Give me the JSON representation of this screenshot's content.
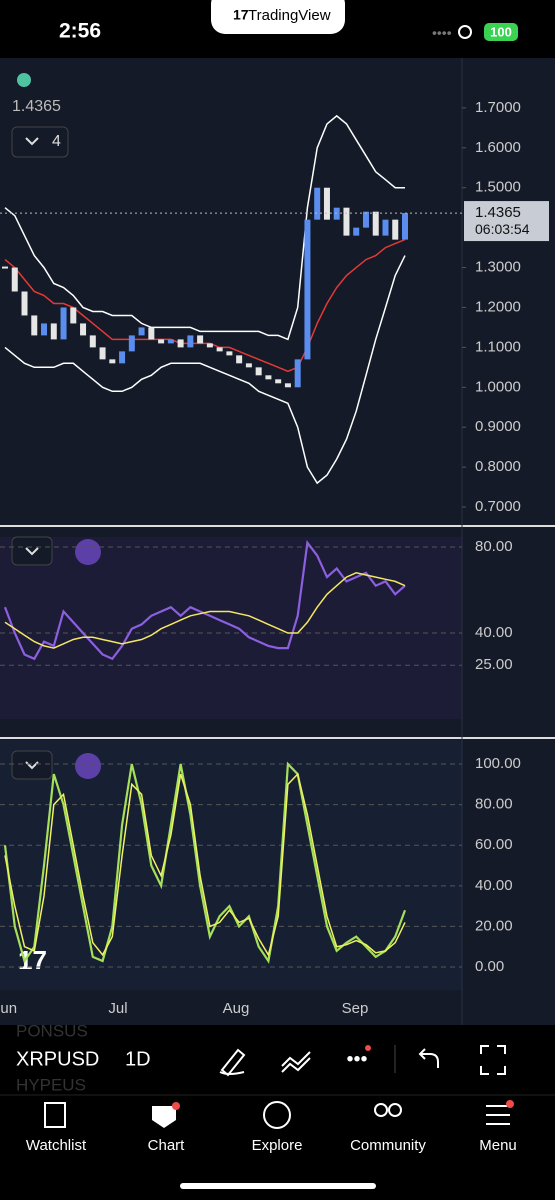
{
  "status_bar": {
    "time": "2:56",
    "brand": "TradingView",
    "battery": "100"
  },
  "chart_header": {
    "price": "1.4365",
    "interval_count": "4"
  },
  "x_labels": [
    "Jun",
    "Jul",
    "Aug",
    "Sep"
  ],
  "chart_data": [
    {
      "type": "candlestick",
      "ylim": [
        0.655,
        1.82
      ],
      "yticks": [
        {
          "value": 1.7,
          "label": "1.7000"
        },
        {
          "value": 1.6,
          "label": "1.6000"
        },
        {
          "value": 1.5,
          "label": "1.5000"
        },
        {
          "value": 1.3,
          "label": "1.3000"
        },
        {
          "value": 1.2,
          "label": "1.2000"
        },
        {
          "value": 1.1,
          "label": "1.1000"
        },
        {
          "value": 1.0,
          "label": "1.0000"
        },
        {
          "value": 0.9,
          "label": "0.9000"
        },
        {
          "value": 0.8,
          "label": "0.8000"
        },
        {
          "value": 0.7,
          "label": "0.7000"
        }
      ],
      "last_price": {
        "value": 1.4365,
        "label": "1.4365",
        "countdown": "06:03:54"
      },
      "up_color": "#5b8def",
      "down_color": "#e6e6e6",
      "values": [
        1.3,
        1.24,
        1.18,
        1.13,
        1.16,
        1.12,
        1.2,
        1.16,
        1.13,
        1.1,
        1.07,
        1.06,
        1.09,
        1.13,
        1.15,
        1.12,
        1.11,
        1.12,
        1.1,
        1.13,
        1.11,
        1.1,
        1.09,
        1.08,
        1.06,
        1.05,
        1.03,
        1.02,
        1.01,
        1.0,
        1.07,
        1.42,
        1.5,
        1.42,
        1.45,
        1.38,
        1.4,
        1.44,
        1.38,
        1.42,
        1.37,
        1.4365
      ],
      "series": [
        {
          "color": "#ffffff",
          "values": [
            1.45,
            1.43,
            1.38,
            1.33,
            1.3,
            1.26,
            1.25,
            1.23,
            1.2,
            1.19,
            1.19,
            1.18,
            1.18,
            1.18,
            1.16,
            1.15,
            1.15,
            1.15,
            1.15,
            1.15,
            1.14,
            1.14,
            1.14,
            1.14,
            1.14,
            1.14,
            1.14,
            1.13,
            1.13,
            1.12,
            1.2,
            1.45,
            1.6,
            1.66,
            1.68,
            1.66,
            1.62,
            1.58,
            1.54,
            1.52,
            1.5,
            1.5
          ]
        },
        {
          "color": "#ffffff",
          "values": [
            1.1,
            1.08,
            1.06,
            1.05,
            1.05,
            1.05,
            1.06,
            1.06,
            1.04,
            1.02,
            1.0,
            0.99,
            0.99,
            1.0,
            1.02,
            1.03,
            1.05,
            1.06,
            1.06,
            1.06,
            1.06,
            1.05,
            1.04,
            1.03,
            1.02,
            1.01,
            0.99,
            0.98,
            0.97,
            0.96,
            0.9,
            0.8,
            0.76,
            0.78,
            0.82,
            0.87,
            0.94,
            1.03,
            1.12,
            1.2,
            1.28,
            1.33
          ]
        },
        {
          "color": "#e53935",
          "values": [
            1.32,
            1.3,
            1.27,
            1.24,
            1.23,
            1.21,
            1.21,
            1.2,
            1.18,
            1.16,
            1.14,
            1.12,
            1.12,
            1.12,
            1.12,
            1.12,
            1.12,
            1.12,
            1.11,
            1.11,
            1.11,
            1.11,
            1.1,
            1.1,
            1.09,
            1.08,
            1.07,
            1.06,
            1.05,
            1.04,
            1.05,
            1.1,
            1.16,
            1.21,
            1.25,
            1.28,
            1.3,
            1.32,
            1.33,
            1.35,
            1.36,
            1.37
          ]
        }
      ]
    },
    {
      "type": "line",
      "ylim": [
        -5.1,
        84.65
      ],
      "yticks": [
        {
          "value": 80,
          "label": "80.00"
        },
        {
          "value": 40,
          "label": "40.00"
        },
        {
          "value": 25,
          "label": "25.00"
        }
      ],
      "series": [
        {
          "color": "#8c5fe0",
          "values": [
            52,
            40,
            30,
            28,
            36,
            34,
            50,
            45,
            40,
            35,
            30,
            28,
            34,
            42,
            44,
            48,
            50,
            52,
            48,
            52,
            50,
            48,
            46,
            44,
            42,
            38,
            36,
            34,
            33,
            33,
            48,
            82,
            76,
            66,
            70,
            64,
            66,
            68,
            62,
            64,
            58,
            62
          ]
        },
        {
          "color": "#f5e663",
          "values": [
            45,
            42,
            39,
            36,
            34,
            33,
            35,
            37,
            38,
            38,
            37,
            36,
            35,
            36,
            37,
            39,
            42,
            44,
            46,
            48,
            49,
            50,
            50,
            50,
            49,
            48,
            46,
            44,
            42,
            40,
            40,
            45,
            52,
            58,
            62,
            66,
            68,
            67,
            66,
            65,
            64,
            62
          ]
        }
      ]
    },
    {
      "type": "line",
      "ylim": [
        -11.3,
        111.8
      ],
      "yticks": [
        {
          "value": 100,
          "label": "100.00"
        },
        {
          "value": 80,
          "label": "80.00"
        },
        {
          "value": 60,
          "label": "60.00"
        },
        {
          "value": 40,
          "label": "40.00"
        },
        {
          "value": 20,
          "label": "20.00"
        },
        {
          "value": 0,
          "label": "0.00"
        }
      ],
      "series": [
        {
          "color": "#a5e05a",
          "values": [
            60,
            20,
            3,
            10,
            50,
            95,
            80,
            55,
            30,
            5,
            3,
            20,
            70,
            100,
            80,
            50,
            40,
            70,
            100,
            75,
            40,
            15,
            25,
            30,
            20,
            25,
            10,
            3,
            30,
            100,
            95,
            70,
            45,
            20,
            8,
            12,
            15,
            10,
            5,
            8,
            15,
            28
          ]
        },
        {
          "color": "#f0f060",
          "values": [
            55,
            30,
            10,
            8,
            35,
            80,
            85,
            60,
            35,
            12,
            6,
            15,
            55,
            90,
            85,
            55,
            45,
            65,
            95,
            80,
            45,
            20,
            22,
            28,
            22,
            24,
            14,
            6,
            25,
            90,
            95,
            75,
            50,
            25,
            10,
            11,
            13,
            11,
            7,
            8,
            12,
            22
          ]
        }
      ]
    }
  ],
  "toolbar": {
    "symbol": "XRPUSD",
    "interval": "1D",
    "ghost_top": "PONSUS",
    "ghost_bottom": "HYPEUS"
  },
  "nav": [
    "Watchlist",
    "Chart",
    "Explore",
    "Community",
    "Menu"
  ]
}
